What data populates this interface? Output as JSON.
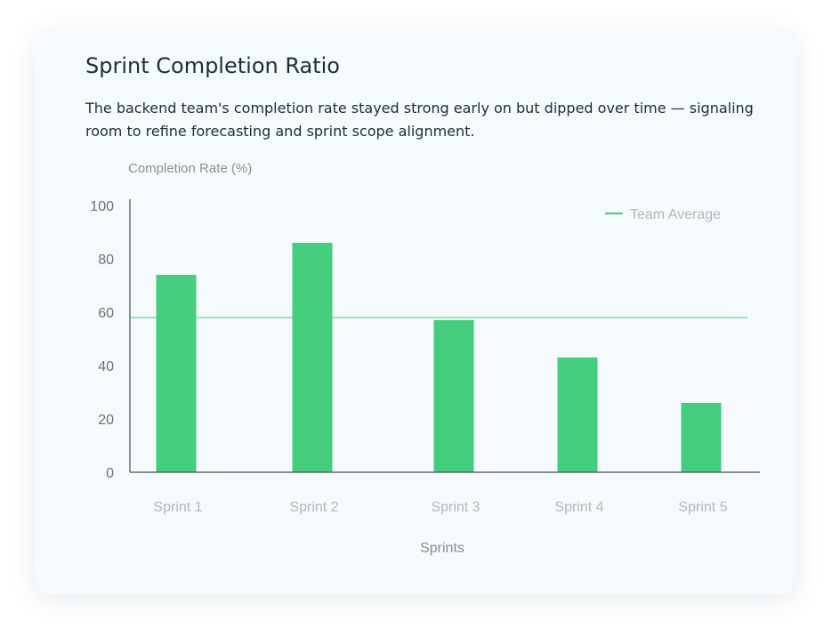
{
  "card": {
    "title": "Sprint Completion Ratio",
    "description": "The backend team's completion rate stayed strong early on but dipped over time — signaling room to refine forecasting and sprint scope alignment."
  },
  "colors": {
    "bar": "#43cd7d",
    "average_line": "#43cd7d",
    "axis": "#4a4f55",
    "tick_label": "#6b7178",
    "category_label": "#b4b8bd",
    "legend_text": "#b4b8bd",
    "card_background": "#f4fafd"
  },
  "chart_data": {
    "type": "bar",
    "title": "",
    "ylabel": "Completion Rate (%)",
    "xlabel": "Sprints",
    "categories": [
      "Sprint 1",
      "Sprint 2",
      "Sprint 3",
      "Sprint 4",
      "Sprint 5"
    ],
    "values": [
      74,
      86,
      57,
      43,
      26
    ],
    "ylim": [
      0,
      100
    ],
    "yticks": [
      0,
      20,
      40,
      60,
      80,
      100
    ],
    "ytick_labels": [
      "0",
      "20",
      "40",
      "60",
      "80",
      "100"
    ],
    "reference_line": {
      "label": "Team Average",
      "value": 58
    },
    "legend": {
      "entries": [
        "Team Average"
      ],
      "placement": "top-right"
    },
    "grid": false
  }
}
